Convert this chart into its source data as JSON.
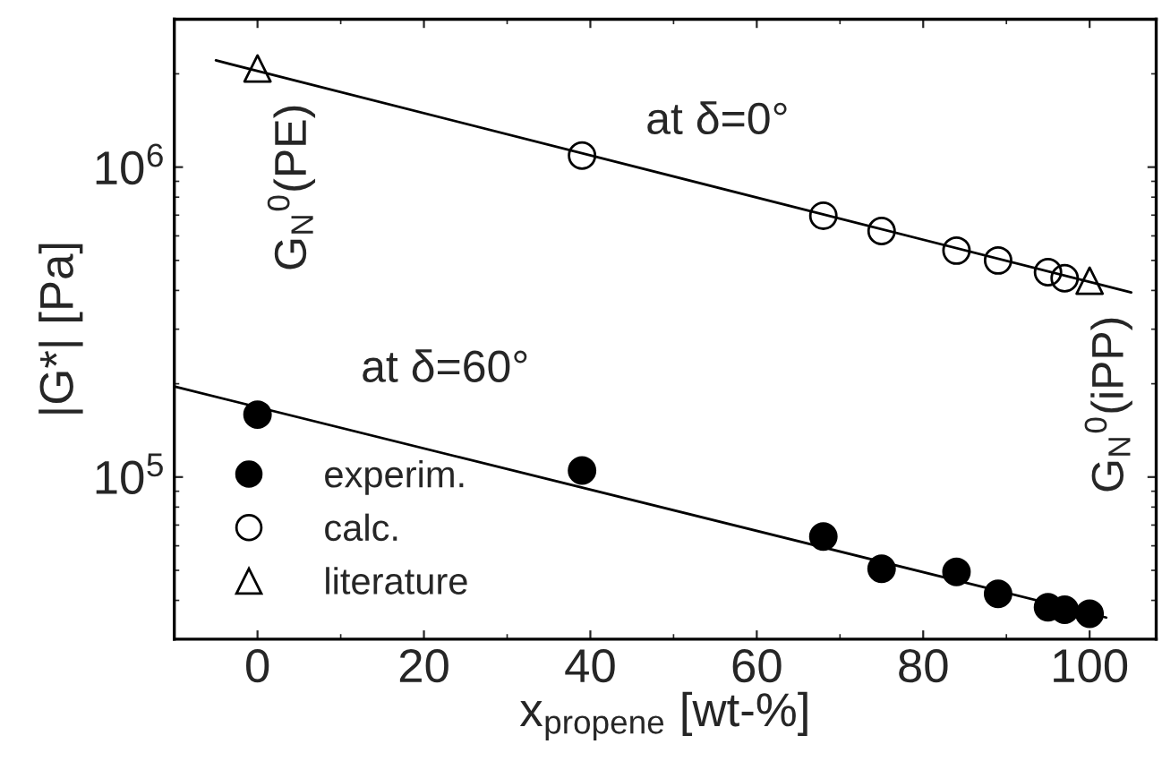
{
  "chart_data": {
    "type": "scatter",
    "xlabel": "x$_{propene}$ [wt-%]",
    "ylabel": "|G*| [Pa]",
    "log": "y",
    "xlim": [
      -10,
      108
    ],
    "ylim": [
      30000,
      3000000
    ],
    "xticks": [
      0,
      20,
      40,
      60,
      80,
      100
    ],
    "yticks": [
      {
        "value": 100000,
        "label": "10$^{5}$"
      },
      {
        "value": 1000000,
        "label": "10$^{6}$"
      }
    ],
    "grid": false,
    "legend": "bottom left",
    "series": [
      {
        "name": "experim.",
        "marker": "circle",
        "color": "#000000",
        "x": [
          0,
          39,
          68,
          75,
          84,
          89,
          95,
          97,
          100
        ],
        "values": [
          159000,
          105000,
          64300,
          50600,
          49400,
          42000,
          38000,
          37300,
          36200
        ]
      },
      {
        "name": "calc.",
        "marker": "circle",
        "color": "#000000",
        "x": [
          39,
          68,
          75,
          84,
          89,
          95,
          97
        ],
        "values": [
          1090000,
          697000,
          622000,
          538000,
          500000,
          458000,
          438000
        ]
      },
      {
        "name": "literature",
        "marker": "triangle",
        "color": "#000000",
        "x": [
          0,
          100
        ],
        "values": [
          2080000,
          430000
        ]
      },
      {
        "type": "line",
        "marker": "none",
        "color": "#000000",
        "x": [
          -5,
          105
        ],
        "values": [
          2210000,
          394000
        ]
      },
      {
        "type": "line",
        "marker": "none",
        "color": "#000000",
        "x": [
          -10,
          102
        ],
        "values": [
          196000,
          35200
        ]
      }
    ],
    "annotations": [
      "at δ=0°",
      "at δ=60°",
      {
        "text": "G$_{N}$$^{0}$(PE)",
        "x": 0,
        "y": 2080000
      },
      {
        "text": "G$_{N}$$^{0}$(iPP)",
        "x": 100,
        "y": 430000
      }
    ]
  }
}
